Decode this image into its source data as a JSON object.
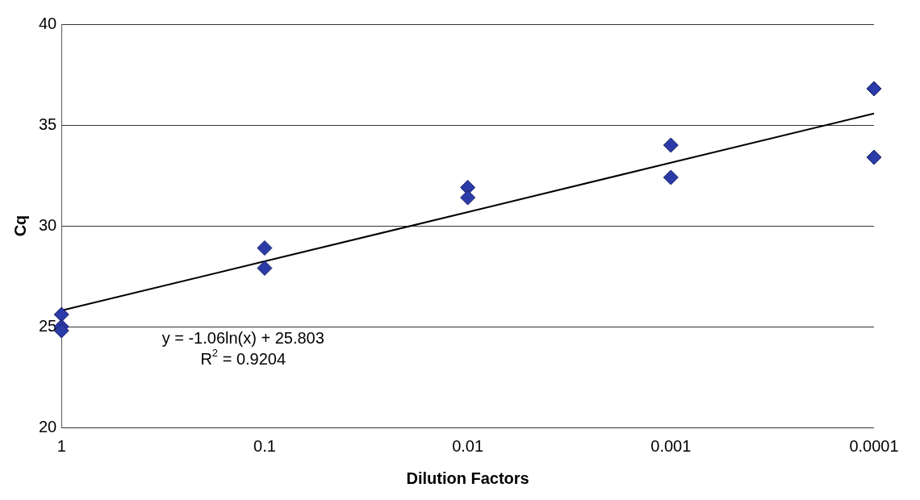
{
  "chart_data": {
    "type": "scatter",
    "xlabel": "Dilution Factors",
    "ylabel": "Cq",
    "categories": [
      "1",
      "0.1",
      "0.01",
      "0.001",
      "0.0001"
    ],
    "series": [
      {
        "color": "#2b3ba8",
        "marker": "diamond",
        "x": [
          "1",
          "1",
          "1",
          "0.1",
          "0.1",
          "0.01",
          "0.01",
          "0.001",
          "0.001",
          "0.0001",
          "0.0001"
        ],
        "values": [
          25.6,
          25,
          24.8,
          28.9,
          27.9,
          31.9,
          31.4,
          34,
          32.4,
          36.8,
          33.4
        ]
      },
      {
        "type": "line",
        "color": "#000000",
        "marker": "none",
        "x": [
          "1",
          "0.1",
          "0.01",
          "0.001",
          "0.0001"
        ],
        "values": [
          25.8,
          28.24,
          30.68,
          33.13,
          35.57
        ]
      }
    ],
    "ylim": [
      20,
      40
    ],
    "yticks": [
      20,
      25,
      30,
      35,
      40
    ],
    "grid": "y",
    "legend": false,
    "line_style": "solid",
    "annotations": [
      "y = -1.06ln(x) + 25.803",
      "R$^{2}$ = 0.9204"
    ]
  }
}
